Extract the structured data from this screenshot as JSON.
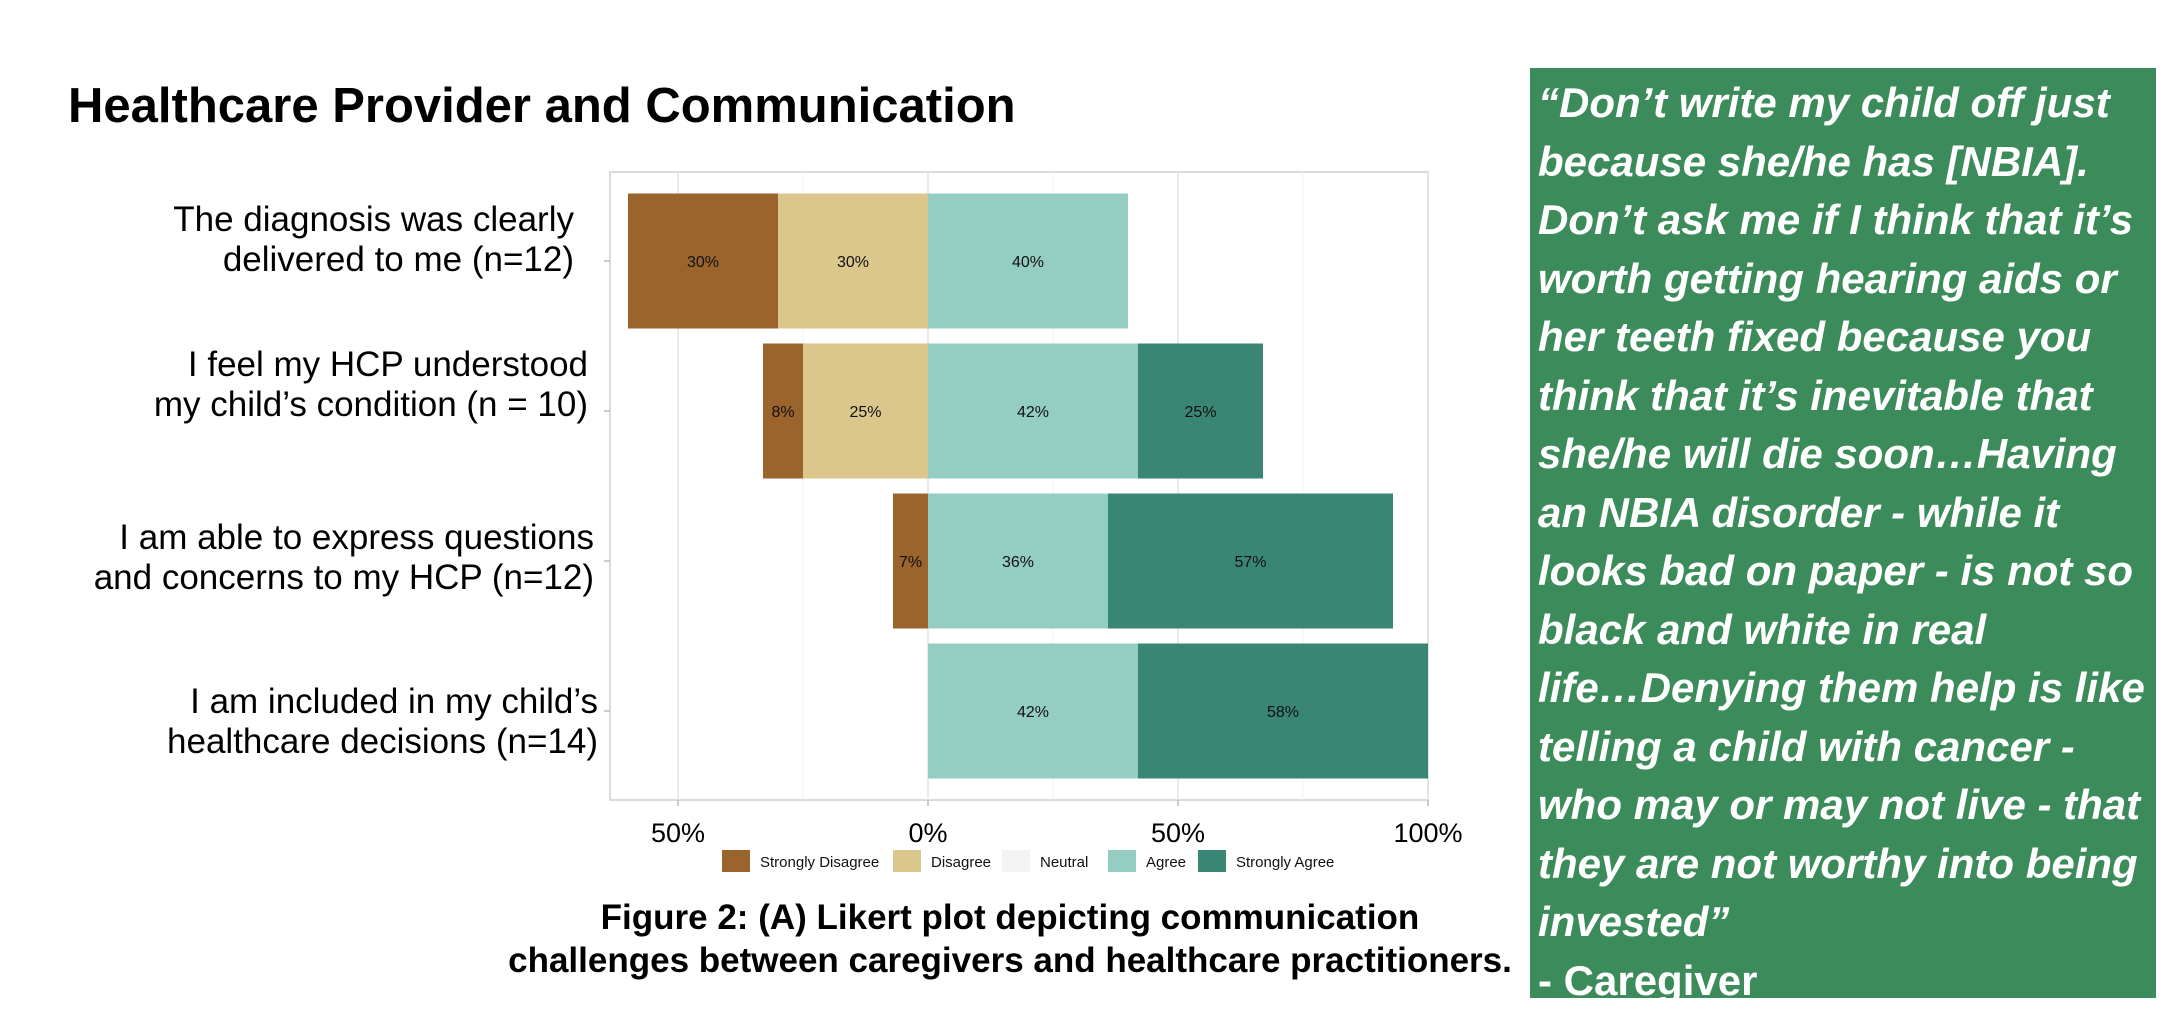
{
  "chart_data": {
    "type": "bar",
    "orientation": "horizontal-diverging",
    "title": "Healthcare Provider and Communication",
    "categories": [
      "The diagnosis was clearly delivered to me (n=12)",
      "I feel my HCP understood my child’s condition (n = 10)",
      "I am able to express questions and concerns to my HCP (n=12)",
      "I am included in my child’s healthcare decisions (n=14)"
    ],
    "category_lines": [
      [
        "The diagnosis was clearly",
        "delivered to me (n=12)"
      ],
      [
        "I feel my HCP understood",
        "my child’s condition (n = 10)"
      ],
      [
        "I am able to express questions",
        "and concerns to my HCP (n=12)"
      ],
      [
        "I am included in my child’s",
        "healthcare decisions (n=14)"
      ]
    ],
    "series": [
      {
        "name": "Strongly Disagree",
        "color": "#9a642c",
        "values": [
          30,
          8,
          7,
          0
        ],
        "labels": [
          "30%",
          "8%",
          "7%",
          ""
        ]
      },
      {
        "name": "Disagree",
        "color": "#dbc68b",
        "values": [
          30,
          25,
          0,
          0
        ],
        "labels": [
          "30%",
          "25%",
          "",
          ""
        ]
      },
      {
        "name": "Neutral",
        "color": "#f4f4f4",
        "values": [
          0,
          0,
          0,
          0
        ],
        "labels": [
          "",
          "",
          "",
          ""
        ]
      },
      {
        "name": "Agree",
        "color": "#94cdc2",
        "values": [
          40,
          42,
          36,
          42
        ],
        "labels": [
          "40%",
          "42%",
          "36%",
          "42%"
        ]
      },
      {
        "name": "Strongly Agree",
        "color": "#3a8674",
        "values": [
          0,
          25,
          57,
          58
        ],
        "labels": [
          "",
          "25%",
          "57%",
          "58%"
        ]
      }
    ],
    "xlim": [
      -68,
      100
    ],
    "xticks": [
      -50,
      0,
      50,
      100
    ],
    "xtick_labels": [
      "50%",
      "0%",
      "50%",
      "100%"
    ],
    "grid": true,
    "legend": "bottom"
  },
  "caption": {
    "line1": "Figure 2: (A) Likert plot depicting communication",
    "line2": "challenges between caregivers and healthcare practitioners."
  },
  "quote": {
    "text": "“Don’t write my child off just because she/he has [NBIA]. Don’t ask me if I think that it’s worth getting hearing aids or her teeth fixed because you think that it’s inevitable that she/he will die soon…Having an NBIA disorder - while it looks bad on paper - is not so black and white in real life…Denying them help is like telling a child with cancer - who may or may not live - that they are not worthy into being invested”",
    "lines": [
      "“Don’t write my child off just",
      "because she/he has [NBIA].",
      "Don’t ask me if I think that it’s",
      "worth getting hearing aids or",
      "her teeth fixed because you",
      "think that it’s inevitable that",
      "she/he will die soon…Having",
      "an NBIA disorder - while it",
      "looks bad on paper - is not so",
      "black and white in real",
      "life…Denying them help is like",
      "telling a child with cancer -",
      "who may or may not live - that",
      "they are not worthy into being",
      "invested”"
    ],
    "author": "- Caregiver",
    "background_color": "#3c8b5a"
  }
}
